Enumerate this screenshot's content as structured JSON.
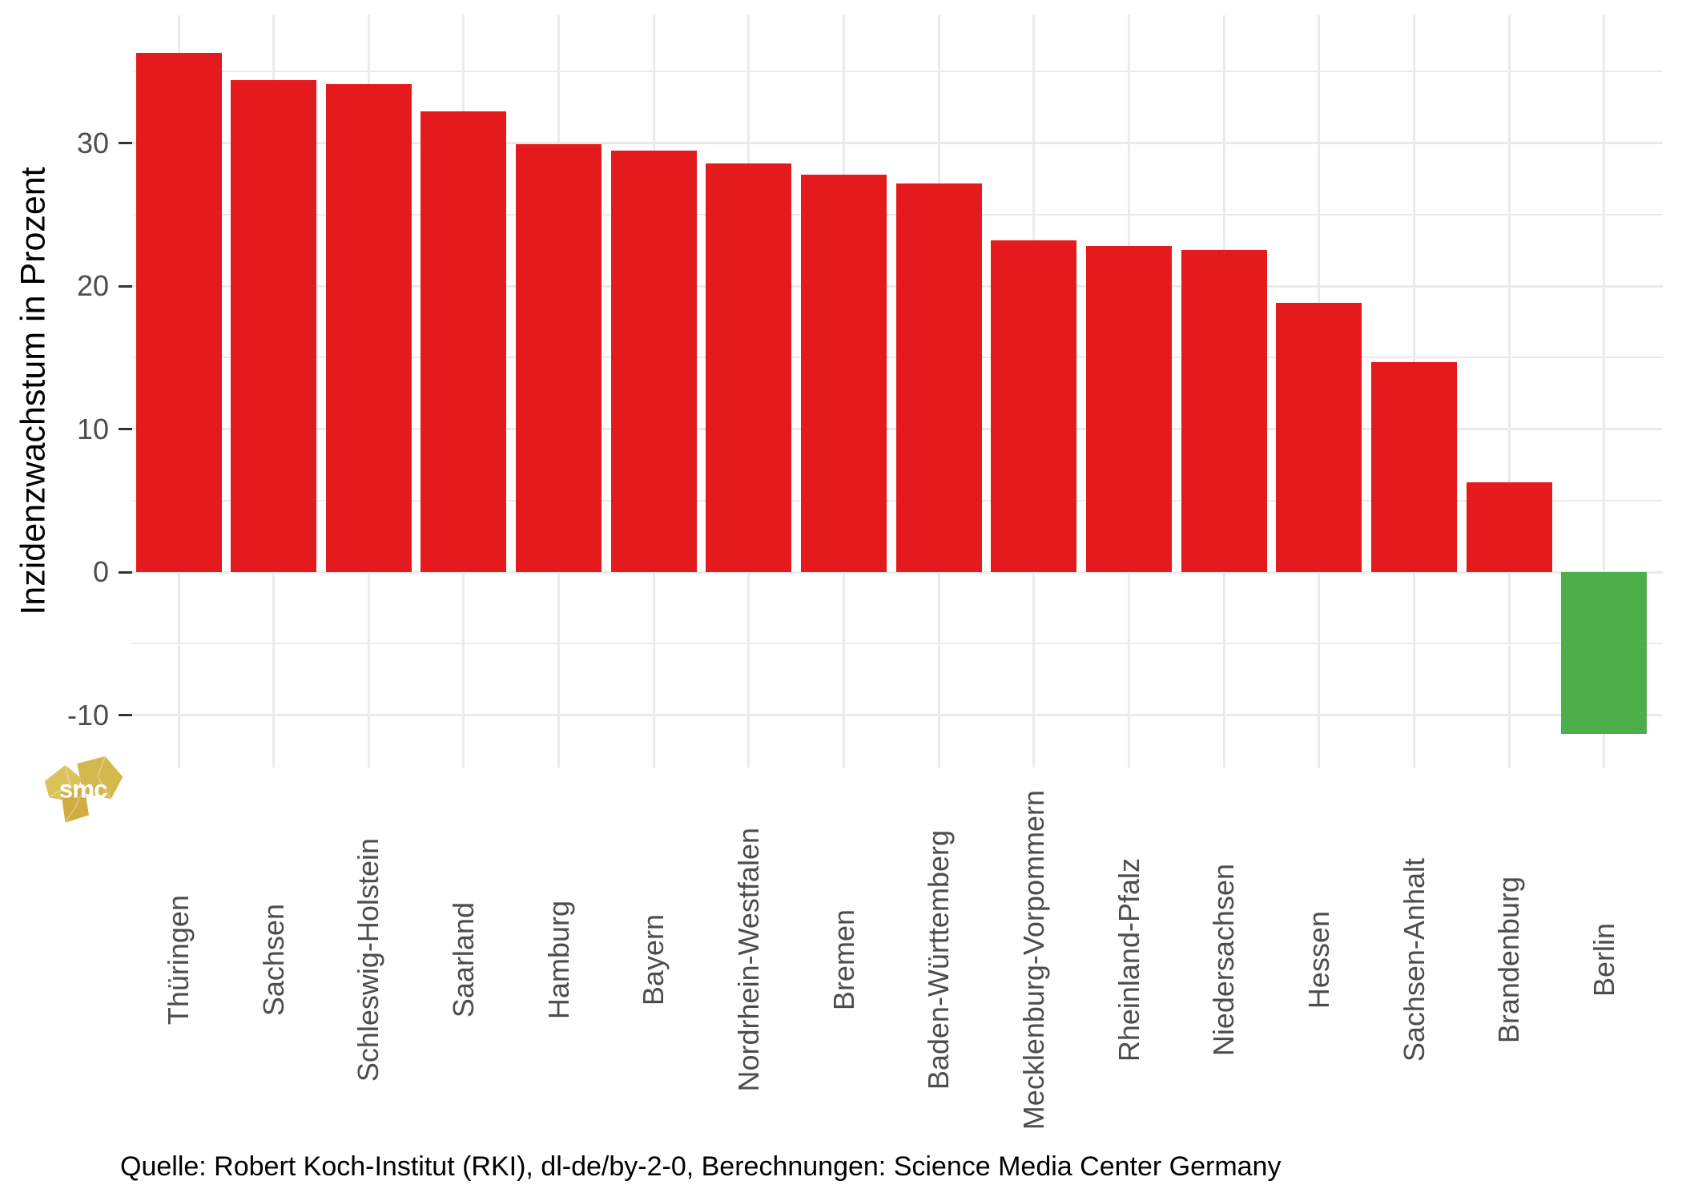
{
  "chart_data": {
    "type": "bar",
    "title": "",
    "xlabel": "",
    "ylabel": "Inzidenzwachstum in Prozent",
    "categories": [
      "Thüringen",
      "Sachsen",
      "Schleswig-Holstein",
      "Saarland",
      "Hamburg",
      "Bayern",
      "Nordrhein-Westfalen",
      "Bremen",
      "Baden-Württemberg",
      "Mecklenburg-Vorpommern",
      "Rheinland-Pfalz",
      "Niedersachsen",
      "Hessen",
      "Sachsen-Anhalt",
      "Brandenburg",
      "Berlin"
    ],
    "values": [
      36.3,
      34.4,
      34.1,
      32.2,
      29.9,
      29.5,
      28.6,
      27.8,
      27.2,
      23.2,
      22.8,
      22.5,
      18.8,
      14.7,
      6.3,
      -11.3
    ],
    "ylim": [
      -13.7,
      38.9
    ],
    "yticks": [
      30,
      20,
      10,
      0,
      -10
    ],
    "minor_gridlines": [
      35,
      25,
      15,
      5,
      -5
    ],
    "grid": "on",
    "legend": "none",
    "bar_color_rule": "red if positive, green if negative"
  },
  "colors": {
    "positive_bar": "#e41a1c",
    "negative_bar": "#4daf4a",
    "gridline": "#ebebeb",
    "tick_mark": "#333333",
    "axis_text": "#4d4d4d",
    "axis_title": "#000000",
    "logo_gold": "#d4b84d",
    "logo_gold_dark": "#cfae3f",
    "logo_gold_light": "#dcc25c"
  },
  "footer": {
    "source_text": "Quelle: Robert Koch-Institut (RKI), dl-de/by-2-0, Berechnungen: Science Media Center Germany"
  },
  "logo": {
    "text": "smc"
  }
}
